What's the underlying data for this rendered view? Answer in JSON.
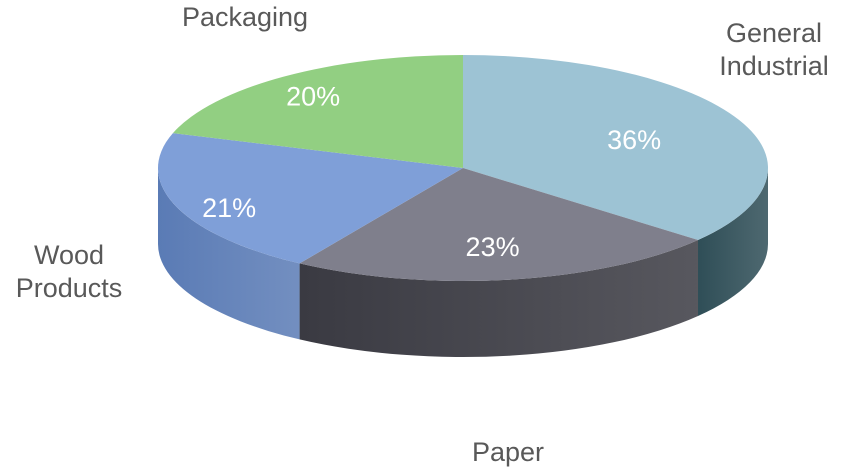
{
  "chart_data": {
    "type": "pie",
    "style": "3d",
    "title": "",
    "categories": [
      "General Industrial",
      "Paper",
      "Wood Products",
      "Packaging"
    ],
    "values": [
      36,
      23,
      21,
      20
    ],
    "data_labels": [
      "36%",
      "23%",
      "21%",
      "20%"
    ],
    "label_lines": [
      [
        "General",
        "Industrial"
      ],
      [
        "Paper"
      ],
      [
        "Wood",
        "Products"
      ],
      [
        "Packaging"
      ]
    ],
    "colors": [
      "#9DC3D4",
      "#7F7F8C",
      "#7F9FD8",
      "#92CF82"
    ],
    "side_colors": [
      "#2F4E57",
      "#3A3A42",
      "#5A7BB5",
      "#5E8A55"
    ],
    "legend": "none"
  }
}
